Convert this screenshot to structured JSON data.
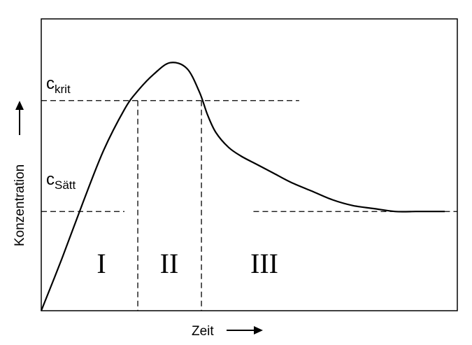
{
  "chart_data": {
    "type": "line",
    "title": "",
    "xlabel": "Zeit",
    "ylabel": "Konzentration",
    "xlim": [
      0,
      100
    ],
    "ylim": [
      0,
      100
    ],
    "grid": false,
    "x": [
      0,
      5,
      10,
      15,
      20,
      23,
      27,
      31,
      35,
      38,
      40,
      42,
      45,
      48,
      52,
      56,
      60,
      65,
      70,
      75,
      80,
      85,
      90,
      93,
      97
    ],
    "series": [
      {
        "values": [
          0,
          18,
          37,
          55,
          69,
          75,
          81,
          85,
          83,
          75,
          67,
          61,
          56,
          53,
          50,
          47,
          44,
          41,
          38,
          36,
          35,
          34,
          34,
          34,
          34
        ]
      }
    ],
    "reference_lines": {
      "c_krit": {
        "value": 72,
        "x_to": 62
      },
      "c_saett": {
        "value": 34,
        "gap": [
          20,
          51
        ]
      },
      "boundaries": [
        23.2,
        38.5
      ]
    },
    "annotations": {
      "c_krit": {
        "main": "c",
        "sub": "krit"
      },
      "c_saett": {
        "main": "c",
        "sub": "Sätt"
      },
      "regions": [
        "I",
        "II",
        "III"
      ]
    }
  }
}
